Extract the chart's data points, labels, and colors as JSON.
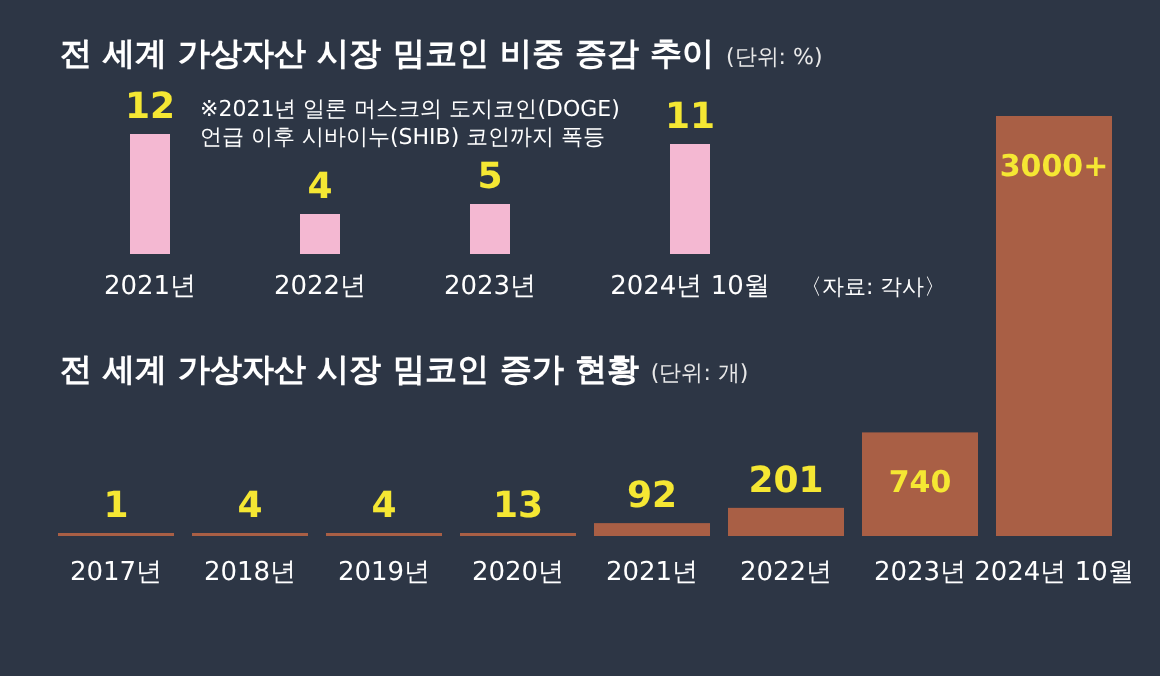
{
  "chart_data": [
    {
      "type": "bar",
      "title": "전 세계 가상자산 시장 밈코인 비중 증감 추이",
      "subtitle": "(단위: %)",
      "categories": [
        "2021년",
        "2022년",
        "2023년",
        "2024년 10월"
      ],
      "values": [
        12,
        4,
        5,
        11
      ],
      "color": "#f4b8d2",
      "data_labels": true,
      "ylim": [
        0,
        12
      ],
      "annotations": [
        "※2021년 일론 머스크의 도지코인(DOGE) 언급 이후 시바이누(SHIB) 코인까지 폭등",
        "〈자료: 각사〉"
      ]
    },
    {
      "type": "bar",
      "title": "전 세계 가상자산 시장 밈코인 증가 현황",
      "subtitle": "(단위: 개)",
      "categories": [
        "2017년",
        "2018년",
        "2019년",
        "2020년",
        "2021년",
        "2022년",
        "2023년",
        "2024년 10월"
      ],
      "values": [
        1,
        4,
        4,
        13,
        92,
        201,
        740,
        3000
      ],
      "color": "#a95f45",
      "ylim": [
        0,
        3000
      ],
      "value_labels": [
        "1",
        "4",
        "4",
        "13",
        "92",
        "201",
        "740",
        "3000+"
      ]
    }
  ]
}
